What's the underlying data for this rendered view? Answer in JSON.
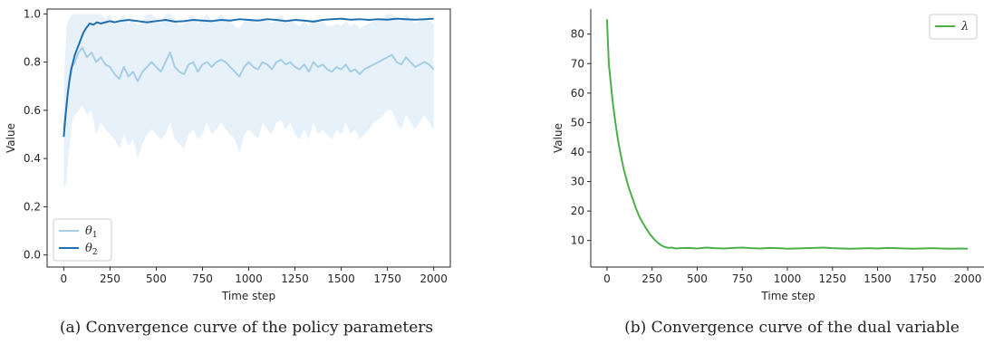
{
  "chart_data": [
    {
      "type": "line",
      "xlabel": "Time step",
      "ylabel": "Value",
      "xlim": [
        -90,
        2090
      ],
      "ylim": [
        -0.05,
        1.02
      ],
      "xticks": [
        0,
        250,
        500,
        750,
        1000,
        1250,
        1500,
        1750,
        2000
      ],
      "yticks": [
        0.0,
        0.2,
        0.4,
        0.6,
        0.8,
        1.0
      ],
      "xtick_labels": [
        "0",
        "250",
        "500",
        "750",
        "1000",
        "1250",
        "1500",
        "1750",
        "2000"
      ],
      "ytick_labels": [
        "0.0",
        "0.2",
        "0.4",
        "0.6",
        "0.8",
        "1.0"
      ],
      "legend_position": "lower-left",
      "grid": false,
      "caption": "(a) Convergence curve of the policy parameters",
      "series": [
        {
          "name": "θ₁",
          "name_base": "θ",
          "name_sub": "1",
          "color": "#a6cee3",
          "band_color": "#d6e8f7",
          "x": [
            0,
            15,
            30,
            45,
            60,
            80,
            100,
            125,
            150,
            175,
            200,
            225,
            250,
            275,
            300,
            325,
            350,
            375,
            400,
            425,
            450,
            475,
            500,
            525,
            550,
            575,
            600,
            625,
            650,
            675,
            700,
            725,
            750,
            775,
            800,
            825,
            850,
            875,
            900,
            925,
            950,
            975,
            1000,
            1025,
            1050,
            1075,
            1100,
            1125,
            1150,
            1175,
            1200,
            1225,
            1250,
            1275,
            1300,
            1325,
            1350,
            1375,
            1400,
            1425,
            1450,
            1475,
            1500,
            1525,
            1550,
            1575,
            1600,
            1625,
            1650,
            1675,
            1700,
            1725,
            1750,
            1775,
            1800,
            1825,
            1850,
            1875,
            1900,
            1925,
            1950,
            1975,
            2000
          ],
          "y": [
            0.52,
            0.62,
            0.72,
            0.78,
            0.8,
            0.84,
            0.86,
            0.82,
            0.84,
            0.8,
            0.82,
            0.79,
            0.78,
            0.75,
            0.73,
            0.78,
            0.74,
            0.76,
            0.72,
            0.76,
            0.78,
            0.8,
            0.78,
            0.76,
            0.8,
            0.84,
            0.78,
            0.76,
            0.75,
            0.79,
            0.8,
            0.76,
            0.79,
            0.8,
            0.78,
            0.8,
            0.81,
            0.8,
            0.78,
            0.76,
            0.74,
            0.78,
            0.8,
            0.78,
            0.77,
            0.8,
            0.79,
            0.77,
            0.8,
            0.81,
            0.79,
            0.8,
            0.78,
            0.77,
            0.79,
            0.76,
            0.8,
            0.78,
            0.79,
            0.77,
            0.76,
            0.78,
            0.77,
            0.79,
            0.76,
            0.77,
            0.75,
            0.77,
            0.78,
            0.79,
            0.8,
            0.81,
            0.82,
            0.83,
            0.8,
            0.79,
            0.82,
            0.8,
            0.78,
            0.79,
            0.8,
            0.79,
            0.77
          ],
          "lower": [
            0.28,
            0.3,
            0.45,
            0.55,
            0.58,
            0.6,
            0.62,
            0.58,
            0.6,
            0.5,
            0.55,
            0.52,
            0.5,
            0.48,
            0.44,
            0.5,
            0.45,
            0.48,
            0.4,
            0.46,
            0.5,
            0.52,
            0.5,
            0.48,
            0.5,
            0.55,
            0.48,
            0.46,
            0.44,
            0.5,
            0.52,
            0.48,
            0.5,
            0.55,
            0.5,
            0.52,
            0.55,
            0.52,
            0.5,
            0.48,
            0.42,
            0.5,
            0.52,
            0.5,
            0.48,
            0.55,
            0.52,
            0.5,
            0.55,
            0.56,
            0.52,
            0.55,
            0.5,
            0.48,
            0.52,
            0.48,
            0.55,
            0.5,
            0.52,
            0.5,
            0.48,
            0.52,
            0.5,
            0.55,
            0.5,
            0.52,
            0.48,
            0.5,
            0.52,
            0.55,
            0.56,
            0.58,
            0.6,
            0.6,
            0.55,
            0.52,
            0.58,
            0.55,
            0.52,
            0.55,
            0.58,
            0.55,
            0.52
          ],
          "upper": [
            0.7,
            0.95,
            0.98,
            1.0,
            1.0,
            1.0,
            1.0,
            1.0,
            1.0,
            1.0,
            1.0,
            0.98,
            1.0,
            0.95,
            0.98,
            1.0,
            0.96,
            0.98,
            0.95,
            0.97,
            1.0,
            1.0,
            0.98,
            0.96,
            1.0,
            1.0,
            0.98,
            0.95,
            0.96,
            0.98,
            1.0,
            0.96,
            0.98,
            1.0,
            0.97,
            0.98,
            1.0,
            0.98,
            0.97,
            0.95,
            0.94,
            0.97,
            0.98,
            0.97,
            0.96,
            0.98,
            0.97,
            0.96,
            0.98,
            1.0,
            0.97,
            0.98,
            0.96,
            0.95,
            0.97,
            0.95,
            0.98,
            0.96,
            0.97,
            0.95,
            0.95,
            0.96,
            0.95,
            0.97,
            0.95,
            0.96,
            0.94,
            0.95,
            0.96,
            0.97,
            0.98,
            0.98,
            1.0,
            1.0,
            0.98,
            0.97,
            1.0,
            0.98,
            0.96,
            0.97,
            0.98,
            0.97,
            0.96
          ]
        },
        {
          "name": "θ₂",
          "name_base": "θ",
          "name_sub": "2",
          "color": "#1f6fb0",
          "x": [
            0,
            10,
            20,
            30,
            40,
            50,
            60,
            75,
            90,
            105,
            120,
            140,
            160,
            180,
            200,
            225,
            250,
            275,
            300,
            350,
            400,
            450,
            500,
            550,
            600,
            650,
            700,
            750,
            800,
            850,
            900,
            950,
            1000,
            1050,
            1100,
            1150,
            1200,
            1250,
            1300,
            1350,
            1400,
            1450,
            1500,
            1550,
            1600,
            1650,
            1700,
            1750,
            1800,
            1850,
            1900,
            1950,
            2000
          ],
          "y": [
            0.49,
            0.58,
            0.66,
            0.72,
            0.77,
            0.8,
            0.83,
            0.86,
            0.89,
            0.92,
            0.94,
            0.96,
            0.955,
            0.965,
            0.96,
            0.965,
            0.97,
            0.965,
            0.97,
            0.975,
            0.97,
            0.965,
            0.97,
            0.975,
            0.968,
            0.97,
            0.975,
            0.972,
            0.97,
            0.975,
            0.972,
            0.978,
            0.975,
            0.972,
            0.978,
            0.975,
            0.97,
            0.975,
            0.972,
            0.968,
            0.975,
            0.978,
            0.98,
            0.976,
            0.978,
            0.975,
            0.978,
            0.976,
            0.98,
            0.978,
            0.976,
            0.978,
            0.98
          ]
        }
      ]
    },
    {
      "type": "line",
      "xlabel": "Time step",
      "ylabel": "Value",
      "xlim": [
        -90,
        2090
      ],
      "ylim": [
        1,
        88.5
      ],
      "xticks": [
        0,
        250,
        500,
        750,
        1000,
        1250,
        1500,
        1750,
        2000
      ],
      "yticks": [
        10,
        20,
        30,
        40,
        50,
        60,
        70,
        80
      ],
      "xtick_labels": [
        "0",
        "250",
        "500",
        "750",
        "1000",
        "1250",
        "1500",
        "1750",
        "2000"
      ],
      "ytick_labels": [
        "10",
        "20",
        "30",
        "40",
        "50",
        "60",
        "70",
        "80"
      ],
      "legend_position": "upper-right",
      "grid": false,
      "caption": "(b) Convergence curve of the dual variable",
      "series": [
        {
          "name": "λ",
          "name_base": "λ",
          "name_sub": "",
          "color": "#4daf4a",
          "x": [
            0,
            10,
            20,
            30,
            40,
            50,
            60,
            70,
            80,
            90,
            100,
            120,
            140,
            160,
            180,
            200,
            220,
            240,
            260,
            280,
            300,
            320,
            340,
            360,
            380,
            400,
            450,
            500,
            550,
            600,
            650,
            700,
            750,
            800,
            850,
            900,
            950,
            1000,
            1050,
            1100,
            1150,
            1200,
            1250,
            1300,
            1350,
            1400,
            1450,
            1500,
            1550,
            1600,
            1650,
            1700,
            1750,
            1800,
            1850,
            1900,
            1950,
            2000
          ],
          "y": [
            85,
            70,
            64,
            58,
            53,
            48.5,
            44.5,
            41,
            38,
            35,
            32.5,
            28,
            24.5,
            21,
            18,
            15.8,
            13.8,
            12,
            10.5,
            9.3,
            8.4,
            7.8,
            7.5,
            7.6,
            7.3,
            7.4,
            7.5,
            7.3,
            7.6,
            7.4,
            7.3,
            7.5,
            7.6,
            7.4,
            7.3,
            7.5,
            7.4,
            7.2,
            7.3,
            7.4,
            7.5,
            7.6,
            7.4,
            7.3,
            7.2,
            7.3,
            7.4,
            7.3,
            7.5,
            7.4,
            7.3,
            7.2,
            7.3,
            7.4,
            7.3,
            7.2,
            7.3,
            7.2
          ]
        }
      ]
    }
  ]
}
